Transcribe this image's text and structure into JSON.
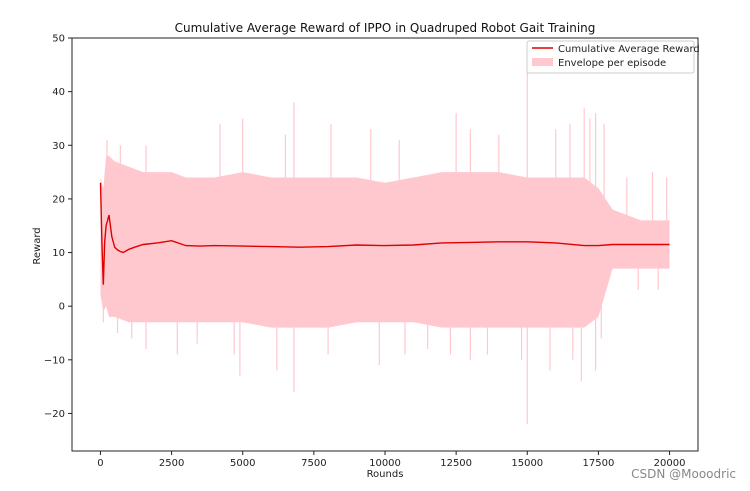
{
  "chart_data": {
    "type": "line",
    "title": "Cumulative Average Reward of IPPO in Quadruped Robot Gait Training",
    "xlabel": "Rounds",
    "ylabel": "Reward",
    "xlim": [
      -1000,
      21000
    ],
    "ylim": [
      -27,
      50
    ],
    "x_ticks": [
      0,
      2500,
      5000,
      7500,
      10000,
      12500,
      15000,
      17500,
      20000
    ],
    "y_ticks": [
      -20,
      -10,
      0,
      10,
      20,
      30,
      40,
      50
    ],
    "legend_position": "top-right",
    "grid": false,
    "colors": {
      "line": "#e00000",
      "envelope": "#ffc8cf"
    },
    "series": [
      {
        "name": "Cumulative Average Reward",
        "kind": "line",
        "x": [
          0,
          50,
          100,
          150,
          200,
          250,
          300,
          350,
          400,
          500,
          600,
          700,
          800,
          900,
          1000,
          1200,
          1500,
          2000,
          2500,
          3000,
          3500,
          4000,
          5000,
          6000,
          7000,
          8000,
          9000,
          10000,
          11000,
          12000,
          13000,
          14000,
          15000,
          16000,
          17000,
          17500,
          18000,
          19000,
          20000
        ],
        "y": [
          23,
          12,
          4,
          12,
          15,
          16,
          17,
          15,
          13,
          11,
          10.5,
          10.2,
          10,
          10.3,
          10.6,
          11,
          11.5,
          11.8,
          12.2,
          11.3,
          11.2,
          11.3,
          11.2,
          11.1,
          11,
          11.1,
          11.4,
          11.3,
          11.4,
          11.8,
          11.9,
          12,
          12,
          11.8,
          11.3,
          11.3,
          11.5,
          11.5,
          11.5
        ]
      },
      {
        "name": "Envelope per episode",
        "kind": "envelope",
        "x": [
          0,
          100,
          200,
          300,
          500,
          1000,
          1500,
          2000,
          2500,
          3000,
          4000,
          5000,
          6000,
          7000,
          8000,
          9000,
          10000,
          11000,
          12000,
          13000,
          14000,
          15000,
          16000,
          17000,
          17500,
          18000,
          18500,
          19000,
          19500,
          20000
        ],
        "y_upper": [
          24,
          22,
          28,
          28,
          27,
          26,
          25,
          25,
          25,
          24,
          24,
          25,
          24,
          24,
          24,
          24,
          23,
          24,
          25,
          25,
          25,
          24,
          24,
          24,
          22,
          18,
          17,
          16,
          16,
          16
        ],
        "y_lower": [
          2,
          -1,
          0,
          -2,
          -2,
          -3,
          -3,
          -3,
          -3,
          -3,
          -3,
          -3,
          -4,
          -4,
          -4,
          -3,
          -3,
          -3,
          -4,
          -4,
          -4,
          -4,
          -4,
          -4,
          -2,
          7,
          7,
          7,
          7,
          7
        ],
        "spikes_high": [
          [
            230,
            31
          ],
          [
            700,
            30
          ],
          [
            1600,
            30
          ],
          [
            4200,
            34
          ],
          [
            5000,
            35
          ],
          [
            6500,
            32
          ],
          [
            6800,
            38
          ],
          [
            8100,
            34
          ],
          [
            9500,
            33
          ],
          [
            10500,
            31
          ],
          [
            12500,
            36
          ],
          [
            13000,
            33
          ],
          [
            14000,
            32
          ],
          [
            15000,
            45
          ],
          [
            16000,
            33
          ],
          [
            16500,
            34
          ],
          [
            17000,
            37
          ],
          [
            17200,
            35
          ],
          [
            17400,
            36
          ],
          [
            17700,
            34
          ],
          [
            18500,
            24
          ],
          [
            19400,
            25
          ],
          [
            19900,
            24
          ]
        ],
        "spikes_low": [
          [
            100,
            -3
          ],
          [
            600,
            -5
          ],
          [
            1600,
            -8
          ],
          [
            1100,
            -6
          ],
          [
            2700,
            -9
          ],
          [
            3400,
            -7
          ],
          [
            4700,
            -9
          ],
          [
            4900,
            -13
          ],
          [
            6200,
            -12
          ],
          [
            6800,
            -16
          ],
          [
            8000,
            -9
          ],
          [
            9800,
            -11
          ],
          [
            10700,
            -9
          ],
          [
            11500,
            -8
          ],
          [
            12300,
            -9
          ],
          [
            13000,
            -10
          ],
          [
            13600,
            -9
          ],
          [
            14800,
            -10
          ],
          [
            15000,
            -22
          ],
          [
            15800,
            -12
          ],
          [
            16600,
            -10
          ],
          [
            16900,
            -14
          ],
          [
            17400,
            -12
          ],
          [
            17600,
            -6
          ],
          [
            18900,
            3
          ],
          [
            19600,
            3
          ]
        ]
      }
    ]
  },
  "watermark": "CSDN @Mooodric"
}
